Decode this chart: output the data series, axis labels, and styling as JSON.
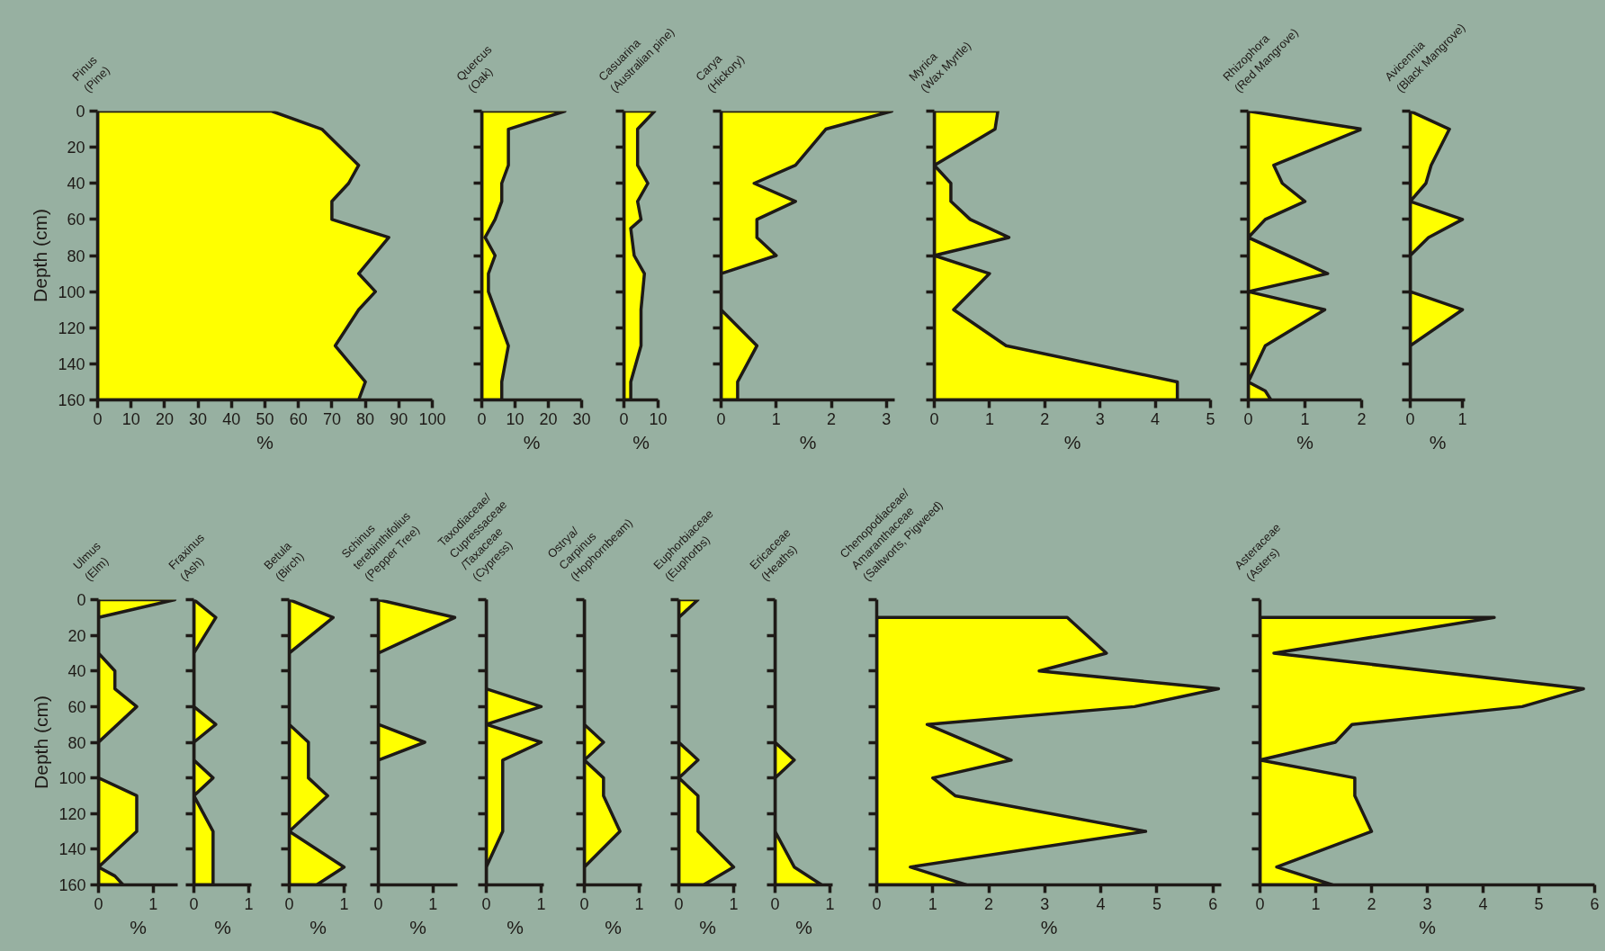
{
  "chart_data": [
    {
      "type": "area",
      "orientation": "horizontal",
      "title": "Pinus\n(Pine)",
      "x": [
        0,
        10,
        30,
        40,
        50,
        60,
        70,
        90,
        100,
        110,
        130,
        150,
        160
      ],
      "values": [
        52,
        67,
        78,
        75,
        70,
        70,
        87,
        78,
        83,
        78,
        71,
        80,
        78
      ],
      "color": "#ffff00",
      "xlim": [
        0,
        100
      ],
      "xticks": [
        0,
        10,
        20,
        30,
        40,
        50,
        60,
        70,
        80,
        90,
        100
      ],
      "ylim": [
        160,
        0
      ],
      "yticks": [
        0,
        20,
        40,
        60,
        80,
        100,
        120,
        140,
        160
      ],
      "xlabel": "%",
      "ylabel": "Depth (cm)"
    },
    {
      "type": "area",
      "orientation": "horizontal",
      "title": "Quercus\n(Oak)",
      "x": [
        0,
        10,
        30,
        40,
        50,
        60,
        70,
        80,
        90,
        100,
        130,
        150,
        160
      ],
      "values": [
        25,
        8,
        8,
        6,
        6,
        4,
        1,
        4,
        2,
        2,
        8,
        6,
        6
      ],
      "color": "#ffff00",
      "xlim": [
        0,
        30
      ],
      "xticks": [
        0,
        10,
        20,
        30
      ],
      "ylim": [
        160,
        0
      ],
      "yticks": [
        0,
        20,
        40,
        60,
        80,
        100,
        120,
        140,
        160
      ],
      "xlabel": "%",
      "tick_labels": "x"
    },
    {
      "type": "area",
      "orientation": "horizontal",
      "title": "Casuarina\n(Australian pine)",
      "x": [
        0,
        10,
        30,
        40,
        50,
        60,
        65,
        80,
        90,
        110,
        130,
        150,
        160
      ],
      "values": [
        9,
        4,
        4,
        7,
        4,
        5,
        2,
        3,
        6,
        5,
        5,
        2,
        2
      ],
      "color": "#ffff00",
      "xlim": [
        0,
        10
      ],
      "xticks": [
        0,
        10
      ],
      "ylim": [
        160,
        0
      ],
      "yticks": [
        0,
        20,
        40,
        60,
        80,
        100,
        120,
        140,
        160
      ],
      "xlabel": "%",
      "tick_labels": "x"
    },
    {
      "type": "area",
      "orientation": "horizontal",
      "title": "Carya\n(Hickory)",
      "x": [
        0,
        10,
        30,
        40,
        50,
        60,
        70,
        80,
        90,
        110,
        130,
        150,
        160
      ],
      "values": [
        3.1,
        1.9,
        1.35,
        0.6,
        1.35,
        0.65,
        0.65,
        1.0,
        0,
        0,
        0.65,
        0.3,
        0.3
      ],
      "color": "#ffff00",
      "xlim": [
        0,
        3.15
      ],
      "xticks": [
        0,
        1,
        2,
        3
      ],
      "ylim": [
        160,
        0
      ],
      "yticks": [
        0,
        20,
        40,
        60,
        80,
        100,
        120,
        140,
        160
      ],
      "xlabel": "%",
      "tick_labels": "x"
    },
    {
      "type": "area",
      "orientation": "horizontal",
      "title": "Myrica\n(Wax Myrtle)",
      "x": [
        0,
        10,
        30,
        40,
        50,
        60,
        70,
        80,
        90,
        110,
        130,
        150,
        160
      ],
      "values": [
        1.15,
        1.1,
        0,
        0.3,
        0.3,
        0.65,
        1.35,
        0,
        1.0,
        0.35,
        1.3,
        4.4,
        4.4
      ],
      "color": "#ffff00",
      "xlim": [
        0,
        5
      ],
      "xticks": [
        0,
        1,
        2,
        3,
        4,
        5
      ],
      "ylim": [
        160,
        0
      ],
      "yticks": [
        0,
        20,
        40,
        60,
        80,
        100,
        120,
        140,
        160
      ],
      "xlabel": "%",
      "tick_labels": "x"
    },
    {
      "type": "area",
      "orientation": "horizontal",
      "title": "Rhizophora\n(Red Mangrove)",
      "x": [
        0,
        10,
        30,
        40,
        50,
        60,
        70,
        90,
        100,
        110,
        130,
        150,
        155,
        160
      ],
      "values": [
        0,
        2.0,
        0.45,
        0.6,
        1.0,
        0.3,
        0,
        1.4,
        0,
        1.35,
        0.3,
        0,
        0.3,
        0.4
      ],
      "color": "#ffff00",
      "xlim": [
        0,
        2
      ],
      "xticks": [
        0,
        1,
        2
      ],
      "ylim": [
        160,
        0
      ],
      "yticks": [
        0,
        20,
        40,
        60,
        80,
        100,
        120,
        140,
        160
      ],
      "xlabel": "%",
      "tick_labels": "x"
    },
    {
      "type": "area",
      "orientation": "horizontal",
      "title": "Avicennia\n(Black Mangrove)",
      "x": [
        0,
        10,
        30,
        40,
        50,
        60,
        70,
        80,
        100,
        110,
        130,
        160
      ],
      "values": [
        0,
        0.75,
        0.4,
        0.3,
        0,
        1.0,
        0.35,
        0,
        0,
        1.0,
        0,
        0
      ],
      "color": "#ffff00",
      "xlim": [
        0,
        1.05
      ],
      "xticks": [
        0,
        1
      ],
      "ylim": [
        160,
        0
      ],
      "yticks": [
        0,
        20,
        40,
        60,
        80,
        100,
        120,
        140,
        160
      ],
      "xlabel": "%",
      "tick_labels": "x"
    },
    {
      "type": "area",
      "orientation": "horizontal",
      "title": "Ulmus\n(Elm)",
      "x": [
        0,
        10,
        30,
        40,
        50,
        60,
        80,
        100,
        110,
        130,
        150,
        155,
        160
      ],
      "values": [
        1.4,
        0,
        0,
        0.3,
        0.3,
        0.7,
        0,
        0,
        0.7,
        0.7,
        0,
        0.3,
        0.45
      ],
      "color": "#ffff00",
      "xlim": [
        0,
        1.45
      ],
      "xticks": [
        0,
        1
      ],
      "ylim": [
        160,
        0
      ],
      "yticks": [
        0,
        20,
        40,
        60,
        80,
        100,
        120,
        140,
        160
      ],
      "xlabel": "%",
      "ylabel": "Depth (cm)"
    },
    {
      "type": "area",
      "orientation": "horizontal",
      "title": "Fraxinus\n(Ash)",
      "x": [
        0,
        10,
        30,
        60,
        70,
        80,
        90,
        100,
        110,
        130,
        160
      ],
      "values": [
        0,
        0.4,
        0,
        0,
        0.4,
        0,
        0,
        0.35,
        0,
        0.35,
        0.35
      ],
      "color": "#ffff00",
      "xlim": [
        0,
        1.05
      ],
      "xticks": [
        0,
        1
      ],
      "ylim": [
        160,
        0
      ],
      "yticks": [
        0,
        20,
        40,
        60,
        80,
        100,
        120,
        140,
        160
      ],
      "xlabel": "%",
      "tick_labels": "x"
    },
    {
      "type": "area",
      "orientation": "horizontal",
      "title": "Betula\n(Birch)",
      "x": [
        0,
        10,
        30,
        70,
        80,
        100,
        110,
        130,
        150,
        160
      ],
      "values": [
        0,
        0.8,
        0,
        0,
        0.35,
        0.35,
        0.7,
        0,
        1.0,
        0.5
      ],
      "color": "#ffff00",
      "xlim": [
        0,
        1.05
      ],
      "xticks": [
        0,
        1
      ],
      "ylim": [
        160,
        0
      ],
      "yticks": [
        0,
        20,
        40,
        60,
        80,
        100,
        120,
        140,
        160
      ],
      "xlabel": "%",
      "tick_labels": "x"
    },
    {
      "type": "area",
      "orientation": "horizontal",
      "title": "Schinus\nterebinthifolius\n(Pepper Tree)",
      "x": [
        0,
        10,
        30,
        70,
        80,
        90,
        160
      ],
      "values": [
        0,
        1.4,
        0,
        0,
        0.85,
        0,
        0
      ],
      "color": "#ffff00",
      "xlim": [
        0,
        1.45
      ],
      "xticks": [
        0,
        1
      ],
      "ylim": [
        160,
        0
      ],
      "yticks": [
        0,
        20,
        40,
        60,
        80,
        100,
        120,
        140,
        160
      ],
      "xlabel": "%",
      "tick_labels": "x"
    },
    {
      "type": "area",
      "orientation": "horizontal",
      "title": "Taxodiaceae/\nCupressaceae\n/Taxaceae\n(Cypress)",
      "x": [
        0,
        50,
        60,
        70,
        80,
        90,
        130,
        150,
        160
      ],
      "values": [
        0,
        0,
        1.0,
        0,
        1.0,
        0.3,
        0.3,
        0,
        0
      ],
      "color": "#ffff00",
      "xlim": [
        0,
        1.05
      ],
      "xticks": [
        0,
        1
      ],
      "ylim": [
        160,
        0
      ],
      "yticks": [
        0,
        20,
        40,
        60,
        80,
        100,
        120,
        140,
        160
      ],
      "xlabel": "%",
      "tick_labels": "x"
    },
    {
      "type": "area",
      "orientation": "horizontal",
      "title": "Ostrya/\nCarpinus\n(Hophornbeam)",
      "x": [
        0,
        70,
        80,
        90,
        100,
        110,
        130,
        150,
        160
      ],
      "values": [
        0,
        0,
        0.35,
        0,
        0.35,
        0.35,
        0.65,
        0,
        0
      ],
      "color": "#ffff00",
      "xlim": [
        0,
        1.05
      ],
      "xticks": [
        0,
        1
      ],
      "ylim": [
        160,
        0
      ],
      "yticks": [
        0,
        20,
        40,
        60,
        80,
        100,
        120,
        140,
        160
      ],
      "xlabel": "%",
      "tick_labels": "x"
    },
    {
      "type": "area",
      "orientation": "horizontal",
      "title": "Euphorbiaceae\n(Euphorbs)",
      "x": [
        0,
        10,
        80,
        90,
        100,
        110,
        130,
        150,
        160
      ],
      "values": [
        0.35,
        0,
        0,
        0.35,
        0,
        0.35,
        0.35,
        1.0,
        0.45
      ],
      "color": "#ffff00",
      "xlim": [
        0,
        1.05
      ],
      "xticks": [
        0,
        1
      ],
      "ylim": [
        160,
        0
      ],
      "yticks": [
        0,
        20,
        40,
        60,
        80,
        100,
        120,
        140,
        160
      ],
      "xlabel": "%",
      "tick_labels": "x"
    },
    {
      "type": "area",
      "orientation": "horizontal",
      "title": "Ericaceae\n(Heaths)",
      "x": [
        0,
        80,
        90,
        100,
        130,
        150,
        160
      ],
      "values": [
        0,
        0,
        0.35,
        0,
        0,
        0.35,
        0.85
      ],
      "color": "#ffff00",
      "xlim": [
        0,
        1.05
      ],
      "xticks": [
        0,
        1
      ],
      "ylim": [
        160,
        0
      ],
      "yticks": [
        0,
        20,
        40,
        60,
        80,
        100,
        120,
        140,
        160
      ],
      "xlabel": "%",
      "tick_labels": "x"
    },
    {
      "type": "area",
      "orientation": "horizontal",
      "title": "Chenopodiaceae/\nAmaranthaceae\n(Saltworts, Pigweed)",
      "x": [
        10,
        30,
        40,
        50,
        60,
        70,
        90,
        100,
        110,
        130,
        150,
        160
      ],
      "values": [
        3.4,
        4.1,
        2.9,
        6.1,
        4.6,
        0.9,
        2.4,
        1.0,
        1.4,
        4.8,
        0.6,
        1.6
      ],
      "color": "#ffff00",
      "xlim": [
        0,
        6.15
      ],
      "xticks": [
        0,
        1,
        2,
        3,
        4,
        5,
        6
      ],
      "ylim": [
        160,
        0
      ],
      "yticks": [
        0,
        20,
        40,
        60,
        80,
        100,
        120,
        140,
        160
      ],
      "xlabel": "%",
      "tick_labels": "x"
    },
    {
      "type": "area",
      "orientation": "horizontal",
      "title": "Asteraceae\n(Asters)",
      "x": [
        10,
        30,
        50,
        60,
        70,
        80,
        90,
        100,
        110,
        130,
        150,
        160
      ],
      "values": [
        4.2,
        0.25,
        5.8,
        4.7,
        1.65,
        1.35,
        0,
        1.7,
        1.7,
        2.0,
        0.3,
        1.3
      ],
      "color": "#ffff00",
      "xlim": [
        0,
        6
      ],
      "xticks": [
        0,
        1,
        2,
        3,
        4,
        5,
        6
      ],
      "ylim": [
        160,
        0
      ],
      "yticks": [
        0,
        20,
        40,
        60,
        80,
        100,
        120,
        140,
        160
      ],
      "xlabel": "%",
      "tick_labels": "x"
    }
  ]
}
